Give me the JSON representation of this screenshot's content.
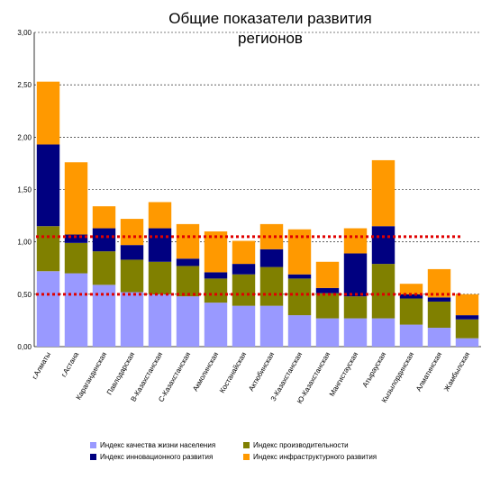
{
  "chart_data": {
    "type": "bar",
    "stacked": true,
    "title": "Общие показатели развития регионов",
    "title_lines": [
      "Общие показатели развития",
      "регионов"
    ],
    "categories": [
      "г.Алматы",
      "г.Астана",
      "Карагандинская",
      "Павлодарская",
      "В-Казахстанская",
      "С-Казахстанская",
      "Акмолинская",
      "Костанайская",
      "Актюбинская",
      "З-Казахстанская",
      "Ю-Казахстанская",
      "Мангистауская",
      "Атырауская",
      "Кызылординская",
      "Алматинская",
      "Жамбылская"
    ],
    "series": [
      {
        "name": "Индекс качества жизни населения",
        "color": "#9999ff",
        "values": [
          0.72,
          0.7,
          0.59,
          0.52,
          0.5,
          0.48,
          0.42,
          0.39,
          0.39,
          0.3,
          0.27,
          0.27,
          0.27,
          0.21,
          0.18,
          0.08
        ]
      },
      {
        "name": "Индекс производительности",
        "color": "#808000",
        "values": [
          0.43,
          0.29,
          0.32,
          0.31,
          0.31,
          0.29,
          0.23,
          0.3,
          0.37,
          0.35,
          0.24,
          0.21,
          0.52,
          0.25,
          0.25,
          0.18
        ]
      },
      {
        "name": "Индекс инновационного развития",
        "color": "#000080",
        "values": [
          0.78,
          0.08,
          0.22,
          0.14,
          0.32,
          0.07,
          0.06,
          0.1,
          0.17,
          0.04,
          0.05,
          0.41,
          0.36,
          0.04,
          0.04,
          0.04
        ]
      },
      {
        "name": "Индекс инфраструктурного развития",
        "color": "#ff9900",
        "values": [
          0.6,
          0.69,
          0.21,
          0.25,
          0.25,
          0.33,
          0.39,
          0.22,
          0.24,
          0.43,
          0.25,
          0.24,
          0.63,
          0.1,
          0.27,
          0.2
        ]
      }
    ],
    "reference_lines": [
      1.05,
      0.5
    ],
    "reference_color": "#e00000",
    "ylim": [
      0,
      3
    ],
    "yticks": [
      "0,00",
      "0,50",
      "1,00",
      "1,50",
      "2,00",
      "2,50",
      "3,00"
    ],
    "ytick_values": [
      0,
      0.5,
      1,
      1.5,
      2,
      2.5,
      3
    ],
    "grid": true,
    "xlabel": "",
    "ylabel": "",
    "legend_position": "bottom"
  }
}
